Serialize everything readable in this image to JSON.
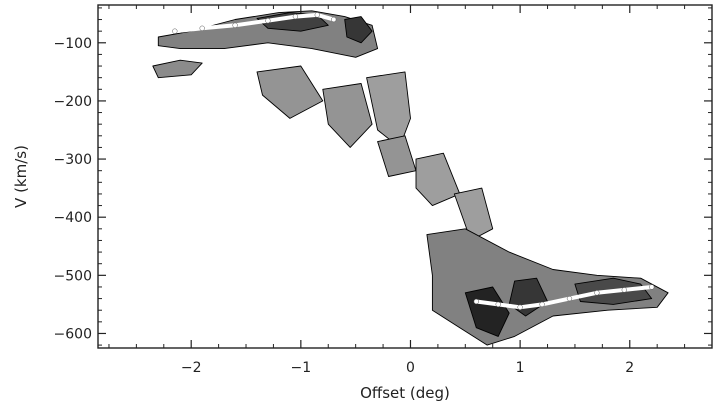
{
  "chart_data": {
    "type": "heatmap",
    "title": "",
    "xlabel": "Offset (deg)",
    "ylabel": "V (km/s)",
    "xlim": [
      -2.85,
      2.75
    ],
    "ylim": [
      -625,
      -35
    ],
    "x_ticks": [
      -2,
      -1,
      0,
      1,
      2
    ],
    "x_tick_labels": [
      "−2",
      "−1",
      "0",
      "1",
      "2"
    ],
    "y_ticks": [
      -100,
      -200,
      -300,
      -400,
      -500,
      -600
    ],
    "y_tick_labels": [
      "−100",
      "−200",
      "−300",
      "−400",
      "−500",
      "−600"
    ],
    "colormap": "greyscale",
    "colors": {
      "low": "#d6d6d6",
      "mid": "#8c8c8c",
      "high": "#1a1a1a",
      "contour": "#000000",
      "trace": "#ffffff"
    },
    "emission_regions": [
      {
        "name": "upper-left-band",
        "points": [
          [
            -2.3,
            -90
          ],
          [
            -2.0,
            -80
          ],
          [
            -1.6,
            -60
          ],
          [
            -1.2,
            -48
          ],
          [
            -0.9,
            -45
          ],
          [
            -0.6,
            -55
          ],
          [
            -0.35,
            -70
          ],
          [
            -0.3,
            -110
          ],
          [
            -0.5,
            -125
          ],
          [
            -0.9,
            -110
          ],
          [
            -1.3,
            -100
          ],
          [
            -1.7,
            -110
          ],
          [
            -2.1,
            -110
          ],
          [
            -2.3,
            -105
          ]
        ],
        "level": 0.45
      },
      {
        "name": "upper-left-core",
        "points": [
          [
            -1.4,
            -58
          ],
          [
            -1.1,
            -48
          ],
          [
            -0.85,
            -52
          ],
          [
            -0.75,
            -70
          ],
          [
            -1.0,
            -80
          ],
          [
            -1.3,
            -75
          ]
        ],
        "level": 0.8
      },
      {
        "name": "upper-left-core-2",
        "points": [
          [
            -0.6,
            -60
          ],
          [
            -0.45,
            -55
          ],
          [
            -0.35,
            -80
          ],
          [
            -0.45,
            -100
          ],
          [
            -0.58,
            -90
          ]
        ],
        "level": 0.85
      },
      {
        "name": "upper-left-spur",
        "points": [
          [
            -2.35,
            -140
          ],
          [
            -2.1,
            -130
          ],
          [
            -1.9,
            -135
          ],
          [
            -2.0,
            -155
          ],
          [
            -2.3,
            -160
          ]
        ],
        "level": 0.4
      },
      {
        "name": "diagonal-1",
        "points": [
          [
            -1.4,
            -150
          ],
          [
            -1.0,
            -140
          ],
          [
            -0.8,
            -200
          ],
          [
            -1.1,
            -230
          ],
          [
            -1.35,
            -190
          ]
        ],
        "level": 0.35
      },
      {
        "name": "diagonal-2",
        "points": [
          [
            -0.8,
            -180
          ],
          [
            -0.45,
            -170
          ],
          [
            -0.35,
            -240
          ],
          [
            -0.55,
            -280
          ],
          [
            -0.75,
            -240
          ]
        ],
        "level": 0.35
      },
      {
        "name": "diagonal-3",
        "points": [
          [
            -0.4,
            -160
          ],
          [
            -0.05,
            -150
          ],
          [
            0.0,
            -230
          ],
          [
            -0.1,
            -280
          ],
          [
            -0.3,
            -250
          ]
        ],
        "level": 0.3
      },
      {
        "name": "diagonal-4",
        "points": [
          [
            -0.3,
            -270
          ],
          [
            -0.05,
            -260
          ],
          [
            0.05,
            -320
          ],
          [
            -0.2,
            -330
          ]
        ],
        "level": 0.35
      },
      {
        "name": "diagonal-5",
        "points": [
          [
            0.05,
            -300
          ],
          [
            0.3,
            -290
          ],
          [
            0.45,
            -360
          ],
          [
            0.2,
            -380
          ],
          [
            0.05,
            -350
          ]
        ],
        "level": 0.3
      },
      {
        "name": "diagonal-6",
        "points": [
          [
            0.4,
            -360
          ],
          [
            0.65,
            -350
          ],
          [
            0.75,
            -420
          ],
          [
            0.55,
            -440
          ]
        ],
        "level": 0.3
      },
      {
        "name": "lower-right-band",
        "points": [
          [
            0.15,
            -430
          ],
          [
            0.5,
            -420
          ],
          [
            0.9,
            -460
          ],
          [
            1.3,
            -490
          ],
          [
            1.7,
            -500
          ],
          [
            2.1,
            -505
          ],
          [
            2.35,
            -530
          ],
          [
            2.25,
            -555
          ],
          [
            1.8,
            -560
          ],
          [
            1.3,
            -570
          ],
          [
            0.95,
            -605
          ],
          [
            0.7,
            -620
          ],
          [
            0.45,
            -590
          ],
          [
            0.2,
            -560
          ],
          [
            0.2,
            -500
          ]
        ],
        "level": 0.45
      },
      {
        "name": "lower-right-core-1",
        "points": [
          [
            0.5,
            -530
          ],
          [
            0.75,
            -520
          ],
          [
            0.9,
            -565
          ],
          [
            0.8,
            -605
          ],
          [
            0.6,
            -590
          ]
        ],
        "level": 0.95
      },
      {
        "name": "lower-right-core-2",
        "points": [
          [
            0.95,
            -510
          ],
          [
            1.15,
            -505
          ],
          [
            1.25,
            -545
          ],
          [
            1.05,
            -570
          ],
          [
            0.9,
            -550
          ]
        ],
        "level": 0.85
      },
      {
        "name": "lower-right-core-3",
        "points": [
          [
            1.5,
            -515
          ],
          [
            1.85,
            -505
          ],
          [
            2.1,
            -515
          ],
          [
            2.2,
            -540
          ],
          [
            1.85,
            -550
          ],
          [
            1.55,
            -545
          ]
        ],
        "level": 0.75
      }
    ],
    "trace_series": [
      {
        "x": [
          -2.15,
          -1.9,
          -1.6,
          -1.3,
          -1.05,
          -0.85,
          -0.7
        ],
        "y": [
          -80,
          -75,
          -70,
          -62,
          -55,
          -52,
          -60
        ]
      },
      {
        "x": [
          0.6,
          0.8,
          1.0,
          1.2,
          1.45,
          1.7,
          1.95,
          2.2
        ],
        "y": [
          -545,
          -550,
          -555,
          -550,
          -540,
          -530,
          -525,
          -520
        ]
      }
    ]
  }
}
